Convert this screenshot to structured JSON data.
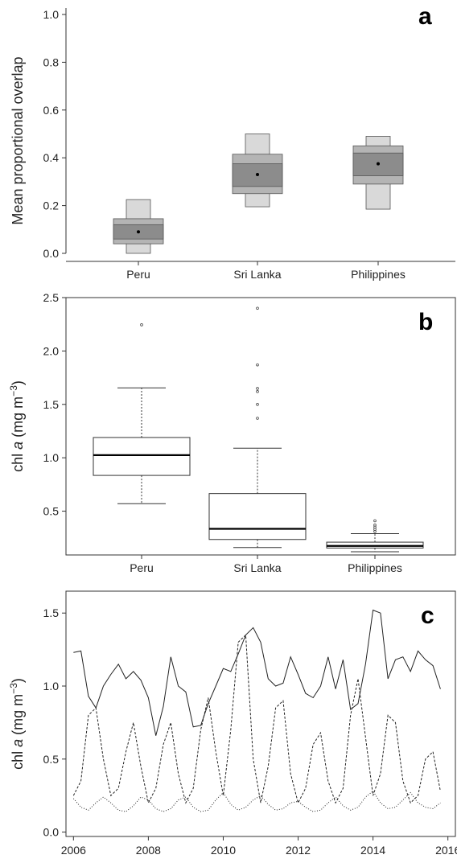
{
  "chart_data": [
    {
      "type": "letter-value box plot",
      "panel_label": "a",
      "ylabel": "Mean proportional overlap",
      "ylim": [
        0.0,
        1.0
      ],
      "y_ticks": [
        "0.0",
        "0.2",
        "0.4",
        "0.6",
        "0.8",
        "1.0"
      ],
      "categories": [
        "Peru",
        "Sri Lanka",
        "Philippines"
      ],
      "boxes": [
        {
          "outer": [
            0.0,
            0.225
          ],
          "middle": [
            0.04,
            0.145
          ],
          "inner": [
            0.06,
            0.12
          ],
          "median": 0.09
        },
        {
          "outer": [
            0.195,
            0.5
          ],
          "middle": [
            0.25,
            0.415
          ],
          "inner": [
            0.28,
            0.375
          ],
          "median": 0.33
        },
        {
          "outer": [
            0.185,
            0.49
          ],
          "middle": [
            0.29,
            0.45
          ],
          "inner": [
            0.325,
            0.42
          ],
          "median": 0.375
        }
      ],
      "colors": {
        "outer": "#d9d9d9",
        "middle": "#b4b4b4",
        "inner": "#8c8c8c"
      }
    },
    {
      "type": "boxplot",
      "panel_label": "b",
      "ylabel_main": "chl",
      "ylabel_italic": "a",
      "ylabel_unit": "(mg m",
      "ylabel_sup": "−3",
      "ylabel_close": ")",
      "ylim": [
        0.09,
        2.5
      ],
      "y_ticks": [
        "0.5",
        "1.0",
        "1.5",
        "2.0",
        "2.5"
      ],
      "categories": [
        "Peru",
        "Sri Lanka",
        "Philippines"
      ],
      "boxes": [
        {
          "whisker_low": 0.57,
          "q1": 0.835,
          "median": 1.025,
          "q3": 1.19,
          "whisker_high": 1.655,
          "outliers": [
            2.245
          ]
        },
        {
          "whisker_low": 0.16,
          "q1": 0.235,
          "median": 0.335,
          "q3": 0.665,
          "whisker_high": 1.09,
          "outliers": [
            1.37,
            1.5,
            1.62,
            1.65,
            1.87,
            2.4
          ]
        },
        {
          "whisker_low": 0.12,
          "q1": 0.155,
          "median": 0.175,
          "q3": 0.21,
          "whisker_high": 0.29,
          "outliers": [
            0.31,
            0.33,
            0.35,
            0.37,
            0.41
          ]
        }
      ]
    },
    {
      "type": "line",
      "panel_label": "c",
      "ylabel_main": "chl",
      "ylabel_italic": "a",
      "ylabel_unit": "(mg m",
      "ylabel_sup": "−3",
      "ylabel_close": ")",
      "xlim": [
        2005.8,
        2016.2
      ],
      "ylim": [
        -0.03,
        1.65
      ],
      "x_ticks": [
        "2006",
        "2008",
        "2010",
        "2012",
        "2014",
        "2016"
      ],
      "y_ticks": [
        "0.0",
        "0.5",
        "1.0",
        "1.5"
      ],
      "series": [
        {
          "style": "solid",
          "x": [
            2006.0,
            2006.2,
            2006.4,
            2006.6,
            2006.8,
            2007.0,
            2007.2,
            2007.4,
            2007.6,
            2007.8,
            2008.0,
            2008.2,
            2008.4,
            2008.6,
            2008.8,
            2009.0,
            2009.2,
            2009.4,
            2009.6,
            2009.8,
            2010.0,
            2010.2,
            2010.4,
            2010.6,
            2010.8,
            2011.0,
            2011.2,
            2011.4,
            2011.6,
            2011.8,
            2012.0,
            2012.2,
            2012.4,
            2012.6,
            2012.8,
            2013.0,
            2013.2,
            2013.4,
            2013.6,
            2013.8,
            2014.0,
            2014.2,
            2014.4,
            2014.6,
            2014.8,
            2015.0,
            2015.2,
            2015.4,
            2015.6,
            2015.8
          ],
          "y": [
            1.23,
            1.24,
            0.93,
            0.85,
            1.0,
            1.08,
            1.15,
            1.05,
            1.1,
            1.04,
            0.92,
            0.66,
            0.86,
            1.2,
            1.0,
            0.96,
            0.72,
            0.73,
            0.88,
            1.0,
            1.12,
            1.1,
            1.22,
            1.35,
            1.4,
            1.3,
            1.05,
            1.0,
            1.02,
            1.2,
            1.08,
            0.95,
            0.92,
            1.0,
            1.2,
            0.98,
            1.18,
            0.84,
            0.88,
            1.15,
            1.52,
            1.5,
            1.05,
            1.18,
            1.2,
            1.1,
            1.24,
            1.18,
            1.14,
            0.98
          ]
        },
        {
          "style": "dashed",
          "x": [
            2006.0,
            2006.2,
            2006.4,
            2006.6,
            2006.8,
            2007.0,
            2007.2,
            2007.4,
            2007.6,
            2007.8,
            2008.0,
            2008.2,
            2008.4,
            2008.6,
            2008.8,
            2009.0,
            2009.2,
            2009.4,
            2009.6,
            2009.8,
            2010.0,
            2010.2,
            2010.4,
            2010.6,
            2010.8,
            2011.0,
            2011.2,
            2011.4,
            2011.6,
            2011.8,
            2012.0,
            2012.2,
            2012.4,
            2012.6,
            2012.8,
            2013.0,
            2013.2,
            2013.4,
            2013.6,
            2013.8,
            2014.0,
            2014.2,
            2014.4,
            2014.6,
            2014.8,
            2015.0,
            2015.2,
            2015.4,
            2015.6,
            2015.8
          ],
          "y": [
            0.25,
            0.35,
            0.8,
            0.85,
            0.5,
            0.25,
            0.3,
            0.55,
            0.75,
            0.45,
            0.2,
            0.3,
            0.6,
            0.75,
            0.4,
            0.2,
            0.3,
            0.7,
            0.92,
            0.55,
            0.25,
            0.7,
            1.3,
            1.35,
            0.5,
            0.2,
            0.45,
            0.85,
            0.9,
            0.4,
            0.2,
            0.3,
            0.6,
            0.68,
            0.35,
            0.2,
            0.3,
            0.8,
            1.05,
            0.65,
            0.25,
            0.4,
            0.8,
            0.75,
            0.35,
            0.2,
            0.25,
            0.5,
            0.55,
            0.28
          ]
        },
        {
          "style": "dotted",
          "x": [
            2006.0,
            2006.2,
            2006.4,
            2006.6,
            2006.8,
            2007.0,
            2007.2,
            2007.4,
            2007.6,
            2007.8,
            2008.0,
            2008.2,
            2008.4,
            2008.6,
            2008.8,
            2009.0,
            2009.2,
            2009.4,
            2009.6,
            2009.8,
            2010.0,
            2010.2,
            2010.4,
            2010.6,
            2010.8,
            2011.0,
            2011.2,
            2011.4,
            2011.6,
            2011.8,
            2012.0,
            2012.2,
            2012.4,
            2012.6,
            2012.8,
            2013.0,
            2013.2,
            2013.4,
            2013.6,
            2013.8,
            2014.0,
            2014.2,
            2014.4,
            2014.6,
            2014.8,
            2015.0,
            2015.2,
            2015.4,
            2015.6,
            2015.8
          ],
          "y": [
            0.23,
            0.17,
            0.15,
            0.2,
            0.24,
            0.2,
            0.15,
            0.14,
            0.18,
            0.24,
            0.22,
            0.16,
            0.14,
            0.16,
            0.22,
            0.24,
            0.17,
            0.14,
            0.15,
            0.22,
            0.27,
            0.19,
            0.15,
            0.17,
            0.22,
            0.25,
            0.19,
            0.15,
            0.16,
            0.2,
            0.21,
            0.17,
            0.14,
            0.15,
            0.2,
            0.24,
            0.18,
            0.15,
            0.17,
            0.24,
            0.28,
            0.2,
            0.16,
            0.17,
            0.22,
            0.27,
            0.2,
            0.17,
            0.16,
            0.2
          ]
        }
      ]
    }
  ]
}
